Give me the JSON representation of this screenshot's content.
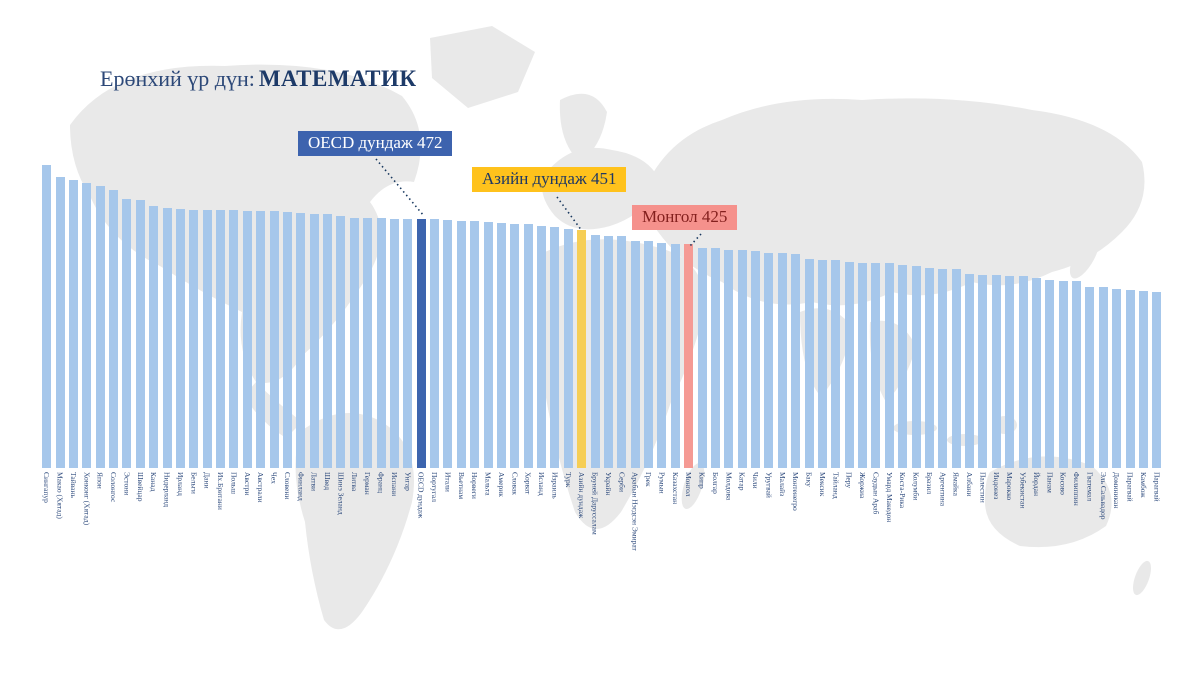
{
  "title": {
    "prefix": "Ерөнхий үр дүн:",
    "subject": "МАТЕМАТИК"
  },
  "callouts": {
    "oecd": {
      "label": "OECD дундаж 472",
      "value": 472
    },
    "asia": {
      "label": "Азийн дундаж 451",
      "value": 451
    },
    "mongolia": {
      "label": "Монгол 425",
      "value": 425
    }
  },
  "colors": {
    "bar_default": "#a6c7eb",
    "bar_oecd": "#3c64ae",
    "bar_asia": "#f6ce55",
    "bar_mongolia": "#f59a94",
    "callout_oecd_bg": "#3d63ae",
    "callout_asia_bg": "#ffc21c",
    "callout_mongolia_bg": "#f5918c",
    "title_color": "#1d3a68",
    "axis_label_color": "#2e4b7d",
    "map_color": "#e9e9e9",
    "connector_color": "#17375e"
  },
  "chart_data": {
    "type": "bar",
    "title": "Ерөнхий үр дүн: МАТЕМАТИК",
    "xlabel": "",
    "ylabel": "",
    "ylim": [
      0,
      575
    ],
    "grid": false,
    "legend": false,
    "annotations": [
      "OECD дундаж 472",
      "Азийн дундаж 451",
      "Монгол 425"
    ],
    "categories": [
      "Сингапур",
      "Макао (Хятад)",
      "Тайвань",
      "Хонконг (Хятад)",
      "Япон",
      "Солонгос",
      "Эстони",
      "Швейцар",
      "Канад",
      "Нидерланд",
      "Ирланд",
      "Бельги",
      "Дани",
      "Их.Британи",
      "Польш",
      "Австри",
      "Австрали",
      "Чех",
      "Словени",
      "Финланд",
      "Латви",
      "Швед",
      "Шинэ Зеланд",
      "Литва",
      "Герман",
      "Франц",
      "Испани",
      "Унгар",
      "OECD дундаж",
      "Португал",
      "Итали",
      "Вьетнам",
      "Норвеги",
      "Мальта",
      "Америк",
      "Словак",
      "Хорват",
      "Исланд",
      "Израиль",
      "Турк",
      "Азийн дундаж",
      "Бруней Даруссалам",
      "Украйн",
      "Серби",
      "Арабын Нэгдсэн Эмират",
      "Грек",
      "Румын",
      "Казахстан",
      "Монгол",
      "Кипр",
      "Болгар",
      "Молдова",
      "Катар",
      "Чили",
      "Уругвай",
      "Малайз",
      "Монтенегро",
      "Баку",
      "Мексик",
      "Тайланд",
      "Перу",
      "Жоржиа",
      "Саудын Араб",
      "Умард Македон",
      "Коста-Рика",
      "Колумби",
      "Бразил",
      "Аргентина",
      "Ямайка",
      "Албани",
      "Палестин",
      "Индонез",
      "Марокко",
      "Узбекистан",
      "Йордан",
      "Панам",
      "Косово",
      "Филиппин",
      "Гватемал",
      "Эль Сальвадор",
      "Доминикан",
      "Парагвай",
      "Камбож",
      "Парагвай"
    ],
    "values": [
      575,
      552,
      547,
      540,
      536,
      527,
      510,
      508,
      497,
      493,
      492,
      489,
      489,
      489,
      489,
      487,
      487,
      487,
      485,
      484,
      483,
      482,
      479,
      475,
      475,
      474,
      473,
      473,
      472,
      472,
      471,
      469,
      468,
      466,
      465,
      464,
      463,
      459,
      458,
      453,
      451,
      442,
      441,
      440,
      431,
      430,
      428,
      425,
      425,
      418,
      417,
      414,
      414,
      412,
      409,
      409,
      406,
      397,
      395,
      394,
      391,
      390,
      389,
      389,
      385,
      383,
      379,
      378,
      377,
      368,
      366,
      366,
      365,
      364,
      361,
      357,
      355,
      355,
      344,
      343,
      339,
      338,
      336,
      335
    ],
    "highlighted": {
      "oecd_index": 28,
      "asia_index": 40,
      "mongolia_index": 48
    }
  }
}
